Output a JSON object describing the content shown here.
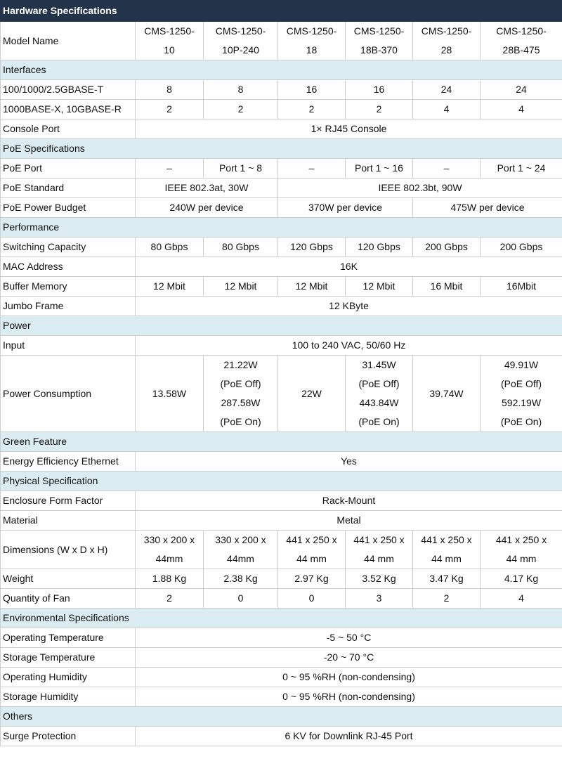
{
  "title": "Hardware Specifications",
  "rows": [
    {
      "type": "row",
      "label": "Model Name",
      "cells": [
        {
          "t": "CMS-1250-\n10"
        },
        {
          "t": "CMS-1250-\n10P-240"
        },
        {
          "t": "CMS-1250-\n18"
        },
        {
          "t": "CMS-1250-\n18B-370"
        },
        {
          "t": "CMS-1250-\n28"
        },
        {
          "t": "CMS-1250-\n28B-475"
        }
      ]
    },
    {
      "type": "section",
      "label": "Interfaces"
    },
    {
      "type": "row",
      "label": "100/1000/2.5GBASE-T",
      "cells": [
        {
          "t": "8"
        },
        {
          "t": "8"
        },
        {
          "t": "16"
        },
        {
          "t": "16"
        },
        {
          "t": "24"
        },
        {
          "t": "24"
        }
      ]
    },
    {
      "type": "row",
      "label": "1000BASE-X, 10GBASE-R",
      "cells": [
        {
          "t": "2"
        },
        {
          "t": "2"
        },
        {
          "t": "2"
        },
        {
          "t": "2"
        },
        {
          "t": "4"
        },
        {
          "t": "4"
        }
      ]
    },
    {
      "type": "row",
      "label": "Console Port",
      "cells": [
        {
          "t": "1× RJ45 Console",
          "span": 6
        }
      ]
    },
    {
      "type": "section",
      "label": "PoE Specifications"
    },
    {
      "type": "row",
      "label": "PoE Port",
      "cells": [
        {
          "t": "–"
        },
        {
          "t": "Port 1 ~ 8"
        },
        {
          "t": "–"
        },
        {
          "t": "Port 1 ~ 16"
        },
        {
          "t": "–"
        },
        {
          "t": "Port 1 ~ 24"
        }
      ]
    },
    {
      "type": "row",
      "label": "PoE Standard",
      "cells": [
        {
          "t": "IEEE 802.3at, 30W",
          "span": 2
        },
        {
          "t": "IEEE 802.3bt, 90W",
          "span": 4
        }
      ]
    },
    {
      "type": "row",
      "label": "PoE Power Budget",
      "cells": [
        {
          "t": "240W per device",
          "span": 2
        },
        {
          "t": "370W per device",
          "span": 2
        },
        {
          "t": "475W per device",
          "span": 2
        }
      ]
    },
    {
      "type": "section",
      "label": "Performance"
    },
    {
      "type": "row",
      "label": "Switching Capacity",
      "cells": [
        {
          "t": "80 Gbps"
        },
        {
          "t": "80 Gbps"
        },
        {
          "t": "120 Gbps"
        },
        {
          "t": "120 Gbps"
        },
        {
          "t": "200 Gbps"
        },
        {
          "t": "200 Gbps"
        }
      ]
    },
    {
      "type": "row",
      "label": "MAC Address",
      "cells": [
        {
          "t": "16K",
          "span": 6
        }
      ]
    },
    {
      "type": "row",
      "label": "Buffer Memory",
      "cells": [
        {
          "t": "12 Mbit"
        },
        {
          "t": "12 Mbit"
        },
        {
          "t": "12 Mbit"
        },
        {
          "t": "12 Mbit"
        },
        {
          "t": "16 Mbit"
        },
        {
          "t": "16Mbit"
        }
      ]
    },
    {
      "type": "row",
      "label": "Jumbo Frame",
      "cells": [
        {
          "t": "12 KByte",
          "span": 6
        }
      ]
    },
    {
      "type": "section",
      "label": "Power"
    },
    {
      "type": "row",
      "label": "Input",
      "cells": [
        {
          "t": "100 to 240 VAC, 50/60 Hz",
          "span": 6
        }
      ]
    },
    {
      "type": "row",
      "label": "Power Consumption",
      "cells": [
        {
          "t": "13.58W"
        },
        {
          "t": "21.22W\n(PoE Off)\n287.58W\n(PoE On)"
        },
        {
          "t": "22W"
        },
        {
          "t": "31.45W\n(PoE Off)\n443.84W\n(PoE On)"
        },
        {
          "t": "39.74W"
        },
        {
          "t": "49.91W\n(PoE Off)\n592.19W\n(PoE On)"
        }
      ]
    },
    {
      "type": "section",
      "label": "Green Feature"
    },
    {
      "type": "row",
      "label": "Energy Efficiency Ethernet",
      "cells": [
        {
          "t": "Yes",
          "span": 6
        }
      ]
    },
    {
      "type": "section",
      "label": "Physical Specification"
    },
    {
      "type": "row",
      "label": "Enclosure Form Factor",
      "cells": [
        {
          "t": "Rack-Mount",
          "span": 6
        }
      ]
    },
    {
      "type": "row",
      "label": "Material",
      "cells": [
        {
          "t": "Metal",
          "span": 6
        }
      ]
    },
    {
      "type": "row",
      "label": "Dimensions (W x D x H)",
      "cells": [
        {
          "t": "330 x 200 x\n44mm"
        },
        {
          "t": "330 x 200 x\n44mm"
        },
        {
          "t": "441 x 250 x\n44 mm"
        },
        {
          "t": "441 x 250 x\n44 mm"
        },
        {
          "t": "441 x 250 x\n44 mm"
        },
        {
          "t": "441 x 250 x\n44 mm"
        }
      ]
    },
    {
      "type": "row",
      "label": "Weight",
      "cells": [
        {
          "t": "1.88 Kg"
        },
        {
          "t": "2.38 Kg"
        },
        {
          "t": "2.97 Kg"
        },
        {
          "t": "3.52 Kg"
        },
        {
          "t": "3.47 Kg"
        },
        {
          "t": "4.17 Kg"
        }
      ]
    },
    {
      "type": "row",
      "label": "Quantity of Fan",
      "cells": [
        {
          "t": "2"
        },
        {
          "t": "0"
        },
        {
          "t": "0"
        },
        {
          "t": "3"
        },
        {
          "t": "2"
        },
        {
          "t": "4"
        }
      ]
    },
    {
      "type": "section",
      "label": "Environmental Specifications"
    },
    {
      "type": "row",
      "label": "Operating Temperature",
      "cells": [
        {
          "t": "-5 ~ 50 °C",
          "span": 6
        }
      ]
    },
    {
      "type": "row",
      "label": "Storage Temperature",
      "cells": [
        {
          "t": "-20 ~ 70 °C",
          "span": 6
        }
      ]
    },
    {
      "type": "row",
      "label": "Operating Humidity",
      "cells": [
        {
          "t": "0 ~ 95 %RH (non-condensing)",
          "span": 6
        }
      ]
    },
    {
      "type": "row",
      "label": "Storage Humidity",
      "cells": [
        {
          "t": "0 ~ 95 %RH (non-condensing)",
          "span": 6
        }
      ]
    },
    {
      "type": "section",
      "label": "Others"
    },
    {
      "type": "row",
      "label": "Surge Protection",
      "cells": [
        {
          "t": "6 KV for Downlink RJ-45 Port",
          "span": 6
        }
      ]
    }
  ]
}
